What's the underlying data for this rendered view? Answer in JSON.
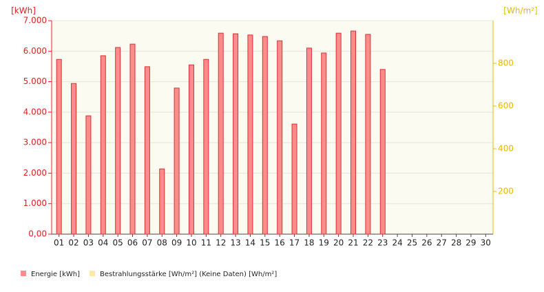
{
  "chart_data": {
    "type": "bar",
    "y_label": "[kWh]",
    "y2_label": "[Wh/m²]",
    "categories": [
      "01",
      "02",
      "03",
      "04",
      "05",
      "06",
      "07",
      "08",
      "09",
      "10",
      "11",
      "12",
      "13",
      "14",
      "15",
      "16",
      "17",
      "18",
      "19",
      "20",
      "21",
      "22",
      "23",
      "24",
      "25",
      "26",
      "27",
      "28",
      "29",
      "30"
    ],
    "series": [
      {
        "name": "Energie [kWh]",
        "color": "#ff8c8c",
        "values": [
          5.73,
          4.94,
          3.88,
          5.85,
          6.12,
          6.23,
          5.49,
          2.14,
          4.79,
          5.55,
          5.73,
          6.59,
          6.57,
          6.53,
          6.48,
          6.34,
          3.61,
          6.1,
          5.94,
          6.59,
          6.66,
          6.55,
          5.4,
          null,
          null,
          null,
          null,
          null,
          null,
          null
        ]
      },
      {
        "name": "Bestrahlungsstärke [Wh/m²] (Keine Daten) [Wh/m²]",
        "color": "#fde9a0",
        "axis": "y2",
        "values": [
          null,
          null,
          null,
          null,
          null,
          null,
          null,
          null,
          null,
          null,
          null,
          null,
          null,
          null,
          null,
          null,
          null,
          null,
          null,
          null,
          null,
          null,
          null,
          null,
          null,
          null,
          null,
          null,
          null,
          null
        ]
      }
    ],
    "ylim": [
      0,
      7
    ],
    "yticks": [
      {
        "value": 0,
        "label": "0,00"
      },
      {
        "value": 1,
        "label": "1.000"
      },
      {
        "value": 2,
        "label": "2.000"
      },
      {
        "value": 3,
        "label": "3.000"
      },
      {
        "value": 4,
        "label": "4.000"
      },
      {
        "value": 5,
        "label": "5.000"
      },
      {
        "value": 6,
        "label": "6.000"
      },
      {
        "value": 7,
        "label": "7.000"
      }
    ],
    "y2lim": [
      0,
      1000
    ],
    "y2ticks": [
      200,
      400,
      600,
      800
    ],
    "grid": true
  }
}
